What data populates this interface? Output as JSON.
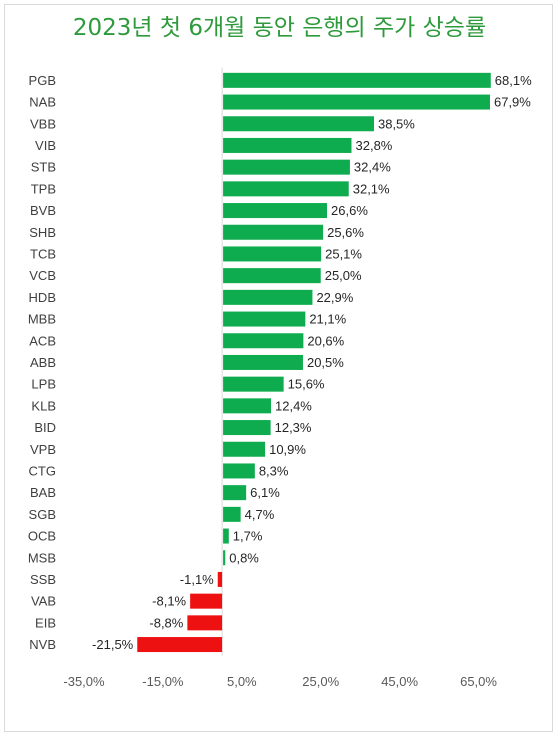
{
  "chart_data": {
    "type": "bar",
    "orientation": "horizontal",
    "title": "2023년 첫 6개월 동안 은행의 주가 상승률",
    "xlabel": "",
    "ylabel": "",
    "categories": [
      "PGB",
      "NAB",
      "VBB",
      "VIB",
      "STB",
      "TPB",
      "BVB",
      "SHB",
      "TCB",
      "VCB",
      "HDB",
      "MBB",
      "ACB",
      "ABB",
      "LPB",
      "KLB",
      "BID",
      "VPB",
      "CTG",
      "BAB",
      "SGB",
      "OCB",
      "MSB",
      "SSB",
      "VAB",
      "EIB",
      "NVB"
    ],
    "values": [
      68.1,
      67.9,
      38.5,
      32.8,
      32.4,
      32.1,
      26.6,
      25.6,
      25.1,
      25.0,
      22.9,
      21.1,
      20.6,
      20.5,
      15.6,
      12.4,
      12.3,
      10.9,
      8.3,
      6.1,
      4.7,
      1.7,
      0.8,
      -1.1,
      -8.1,
      -8.8,
      -21.5
    ],
    "value_labels": [
      "68,1%",
      "67,9%",
      "38,5%",
      "32,8%",
      "32,4%",
      "32,1%",
      "26,6%",
      "25,6%",
      "25,1%",
      "25,0%",
      "22,9%",
      "21,1%",
      "20,6%",
      "20,5%",
      "15,6%",
      "12,4%",
      "12,3%",
      "10,9%",
      "8,3%",
      "6,1%",
      "4,7%",
      "1,7%",
      "0,8%",
      "-1,1%",
      "-8,1%",
      "-8,8%",
      "-21,5%"
    ],
    "xlim": [
      -35,
      75
    ],
    "x_ticks": [
      -35,
      -15,
      5,
      25,
      45,
      65
    ],
    "x_tick_labels": [
      "-35,0%",
      "-15,0%",
      "5,0%",
      "25,0%",
      "45,0%",
      "65,0%"
    ],
    "grid": false,
    "legend": "none",
    "colors": {
      "positive": "#0fac4f",
      "negative": "#ee1111",
      "title": "#2e9a3c",
      "zero_line": "#d9d9d9"
    }
  }
}
